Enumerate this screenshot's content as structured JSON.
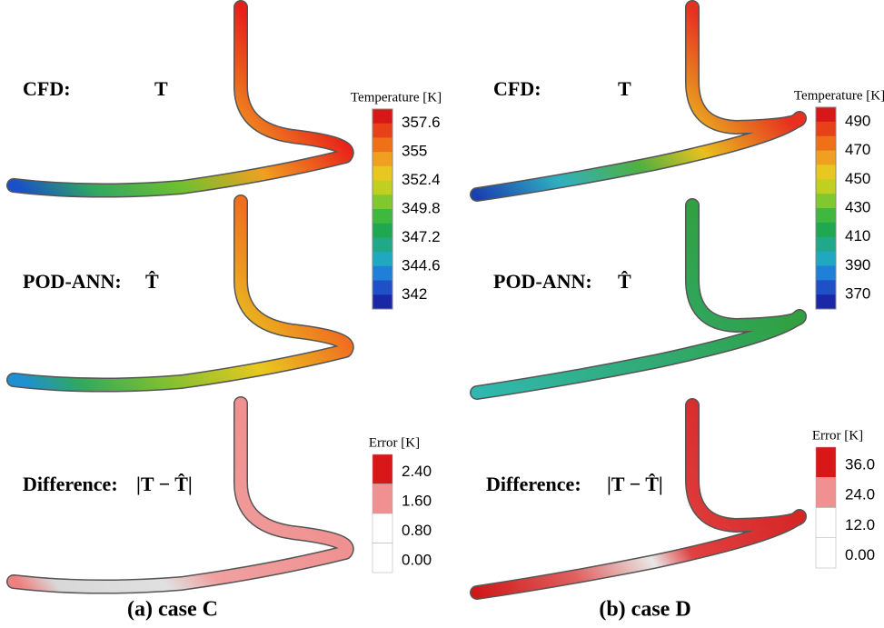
{
  "panels": [
    {
      "caption": "(a) case C",
      "rows": [
        {
          "label": "CFD:",
          "symbol": "T"
        },
        {
          "label": "POD-ANN:",
          "symbol": "T̂"
        },
        {
          "label": "Difference:",
          "symbol": "|T − T̂|"
        }
      ],
      "temperature_legend": {
        "title": "Temperature [K]",
        "ticks": [
          "357.6",
          "355",
          "352.4",
          "349.8",
          "347.2",
          "344.6",
          "342"
        ]
      },
      "error_legend": {
        "title": "Error [K]",
        "ticks": [
          "2.40",
          "1.60",
          "0.80",
          "0.00"
        ]
      }
    },
    {
      "caption": "(b) case D",
      "rows": [
        {
          "label": "CFD:",
          "symbol": "T"
        },
        {
          "label": "POD-ANN:",
          "symbol": "T̂"
        },
        {
          "label": "Difference:",
          "symbol": "|T − T̂|"
        }
      ],
      "temperature_legend": {
        "title": "Temperature [K]",
        "ticks": [
          "490",
          "470",
          "450",
          "430",
          "410",
          "390",
          "370"
        ]
      },
      "error_legend": {
        "title": "Error [K]",
        "ticks": [
          "36.0",
          "24.0",
          "12.0",
          "0.00"
        ]
      }
    }
  ]
}
